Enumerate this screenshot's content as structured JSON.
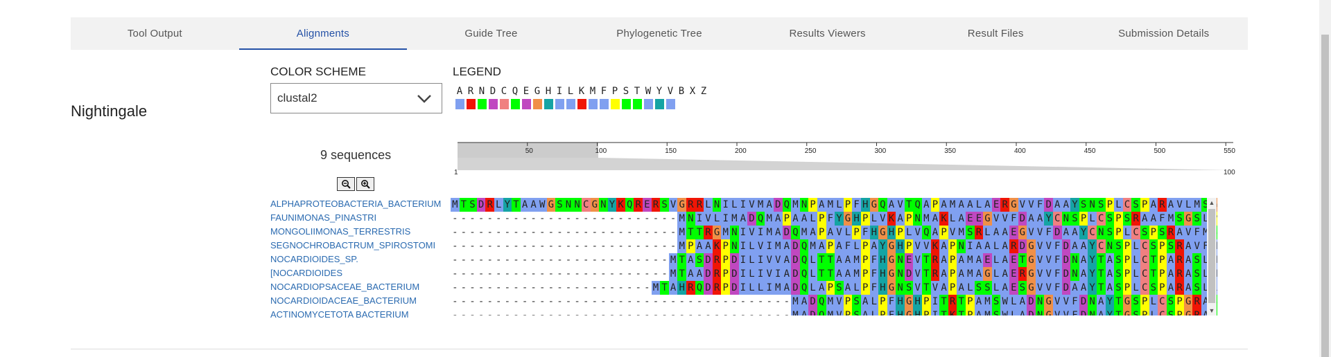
{
  "tabs": [
    {
      "label": "Tool Output",
      "active": false
    },
    {
      "label": "Alignments",
      "active": true
    },
    {
      "label": "Guide Tree",
      "active": false
    },
    {
      "label": "Phylogenetic Tree",
      "active": false
    },
    {
      "label": "Results Viewers",
      "active": false
    },
    {
      "label": "Result Files",
      "active": false
    },
    {
      "label": "Submission Details",
      "active": false
    }
  ],
  "page_heading": "Nightingale",
  "color_scheme": {
    "label": "COLOR SCHEME",
    "value": "clustal2",
    "icon": "chevron-down-icon"
  },
  "legend": {
    "label": "LEGEND",
    "items": [
      {
        "letter": "A",
        "color": "#80a0f0"
      },
      {
        "letter": "R",
        "color": "#f01505"
      },
      {
        "letter": "N",
        "color": "#00ff00"
      },
      {
        "letter": "D",
        "color": "#c048c0"
      },
      {
        "letter": "C",
        "color": "#f08080"
      },
      {
        "letter": "Q",
        "color": "#00ff00"
      },
      {
        "letter": "E",
        "color": "#c048c0"
      },
      {
        "letter": "G",
        "color": "#f09048"
      },
      {
        "letter": "H",
        "color": "#15a4a4"
      },
      {
        "letter": "I",
        "color": "#80a0f0"
      },
      {
        "letter": "L",
        "color": "#80a0f0"
      },
      {
        "letter": "K",
        "color": "#f01505"
      },
      {
        "letter": "M",
        "color": "#80a0f0"
      },
      {
        "letter": "F",
        "color": "#80a0f0"
      },
      {
        "letter": "P",
        "color": "#ffff00"
      },
      {
        "letter": "S",
        "color": "#00ff00"
      },
      {
        "letter": "T",
        "color": "#00ff00"
      },
      {
        "letter": "W",
        "color": "#80a0f0"
      },
      {
        "letter": "Y",
        "color": "#15a4a4"
      },
      {
        "letter": "V",
        "color": "#80a0f0"
      },
      {
        "letter": "B",
        "color": ""
      },
      {
        "letter": "X",
        "color": ""
      },
      {
        "letter": "Z",
        "color": ""
      }
    ]
  },
  "sequence_count": "9 sequences",
  "zoom": {
    "out_icon": "zoom-out-icon",
    "in_icon": "zoom-in-icon"
  },
  "navigator": {
    "ticks": [
      "50",
      "100",
      "150",
      "200",
      "250",
      "300",
      "350",
      "400",
      "450",
      "500",
      "550"
    ],
    "range_start": "1",
    "range_end": "100"
  },
  "alignment": {
    "names": [
      "ALPHAPROTEOBACTERIA_BACTERIUM",
      "FAUNIMONAS_PINASTRI",
      "MONGOLIIMONAS_TERRESTRIS",
      "SEGNOCHROBACTRUM_SPIROSTOMI",
      "NOCARDIOIDES_SP.",
      "[NOCARDIOIDES",
      "NOCARDIOPSACEAE_BACTERIUM",
      "NOCARDIOIDACEAE_BACTERIUM",
      "ACTINOMYCETOTA  BACTERIUM"
    ],
    "sequences": [
      "MTSDRLYTAAWGSNNCGNYKQRERSVGRRLNILIVMADQMNPAMLPFHGQAVTQAPAMAALAERGVVFDAAYSNSPLCSPARAVLMSGRLPSATGVYDN",
      "--------------------------MNIVLIMADQMAPAALPFYGHPLVKAPNMAKLAEEGVVFDAAYCNSPLCSPSRAAFMSGSLPSRTGAYDN",
      "--------------------------MTTRGMNIVIMADQMAPAVLPFHGHPLVQAPVMSRLAAEGVVFDAAYCNSPLCSPSRAVFMSGRLPSKTGAYDN",
      "--------------------------MPAAKPNILVIMADQMAPAFLPAYGHPVVKAPNIAALARDGVVFDAAYCNSPLCSPSRAVFMSGRLPSKTAAYDN",
      "-------------------------MTASDRPDILIVVADQLTTAAMPFHGNEVTRAPAMAELAETGVVFDNAYTASPLCTPARASLMTGLLPSNTHSYDN",
      "-------------------------MTAADRPDILIVIADQLTTAAMPFHGNDVTRAPAMAGLAERGVVFDNAYTASPLCTPARASLMTGLLPSNTHTYDN",
      "-----------------------MTAHRQDRPDILLIMADQLAPSALPFHGNSVTVAPALSSLAESGVVFDAAYTASPLCSPARASLLTGMLPSRTGVYDN",
      "---------------------------------------MADQMVPSALPFHGHPITRTPAMSWLADNGVVFDNAYTGSPLCSPGRASLMTGLLPSRTHAYDN",
      "---------------------------------------MADQMVPSALPFHGHPITKTPAMSWLADNGVVFDNAYTGSPLCSPGRASFMTGLLPSRTHTYDN"
    ]
  }
}
